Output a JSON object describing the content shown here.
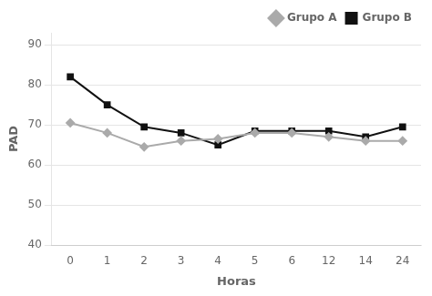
{
  "chart_data": {
    "type": "line",
    "xlabel": "Horas",
    "ylabel": "PAD",
    "categories": [
      "0",
      "1",
      "2",
      "3",
      "4",
      "5",
      "6",
      "12",
      "14",
      "24"
    ],
    "series": [
      {
        "name": "Grupo A",
        "color": "#aaaaaa",
        "marker": "diamond",
        "line_style": "solid",
        "values": [
          70.5,
          68.0,
          64.5,
          66.0,
          66.5,
          68.0,
          68.0,
          67.0,
          66.0,
          66.0
        ]
      },
      {
        "name": "Grupo B",
        "color": "#111111",
        "marker": "square",
        "line_style": "solid",
        "values": [
          82.0,
          75.0,
          69.5,
          68.0,
          65.0,
          68.5,
          68.5,
          68.5,
          67.0,
          69.5
        ]
      }
    ],
    "ylim": [
      40,
      93
    ],
    "yticks": [
      40,
      50,
      60,
      70,
      80,
      90
    ],
    "grid": true,
    "legend": "upper right"
  }
}
